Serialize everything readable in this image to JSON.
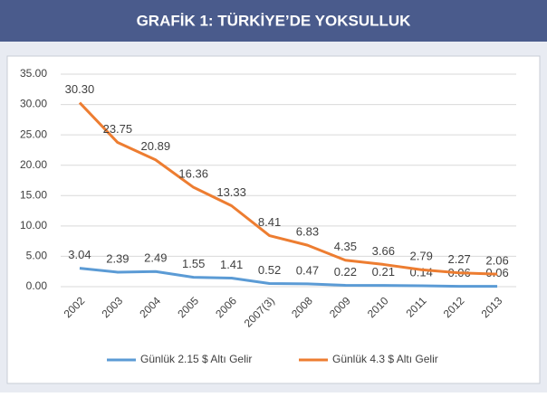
{
  "chart_data": {
    "type": "line",
    "title": "GRAFİK 1: TÜRKİYE’DE YOKSULLUK",
    "categories": [
      "2002",
      "2003",
      "2004",
      "2005",
      "2006",
      "2007(3)",
      "2008",
      "2009",
      "2010",
      "2011",
      "2012",
      "2013"
    ],
    "series": [
      {
        "name": "Günlük 2.15 $ Altı Gelir",
        "color": "#5b9bd5",
        "values": [
          3.04,
          2.39,
          2.49,
          1.55,
          1.41,
          0.52,
          0.47,
          0.22,
          0.21,
          0.14,
          0.06,
          0.06
        ],
        "value_labels": [
          "3.04",
          "2.39",
          "2.49",
          "1.55",
          "1.41",
          "0.52",
          "0.47",
          "0.22",
          "0.21",
          "0.14",
          "0.06",
          "0.06"
        ]
      },
      {
        "name": "Günlük 4.3 $ Altı Gelir",
        "color": "#ed7d31",
        "values": [
          30.3,
          23.75,
          20.89,
          16.36,
          13.33,
          8.41,
          6.83,
          4.35,
          3.66,
          2.79,
          2.27,
          2.06
        ],
        "value_labels": [
          "30.30",
          "23.75",
          "20.89",
          "16.36",
          "13.33",
          "8.41",
          "6.83",
          "4.35",
          "3.66",
          "2.79",
          "2.27",
          "2.06"
        ]
      }
    ],
    "ylim": [
      0,
      35
    ],
    "yticks": [
      {
        "value": 0,
        "label": "0.00"
      },
      {
        "value": 5,
        "label": "5.00"
      },
      {
        "value": 10,
        "label": "10.00"
      },
      {
        "value": 15,
        "label": "15.00"
      },
      {
        "value": 20,
        "label": "20.00"
      },
      {
        "value": 25,
        "label": "25.00"
      },
      {
        "value": 30,
        "label": "30.00"
      },
      {
        "value": 35,
        "label": "35.00"
      }
    ],
    "grid": true,
    "legend": "bottom"
  }
}
